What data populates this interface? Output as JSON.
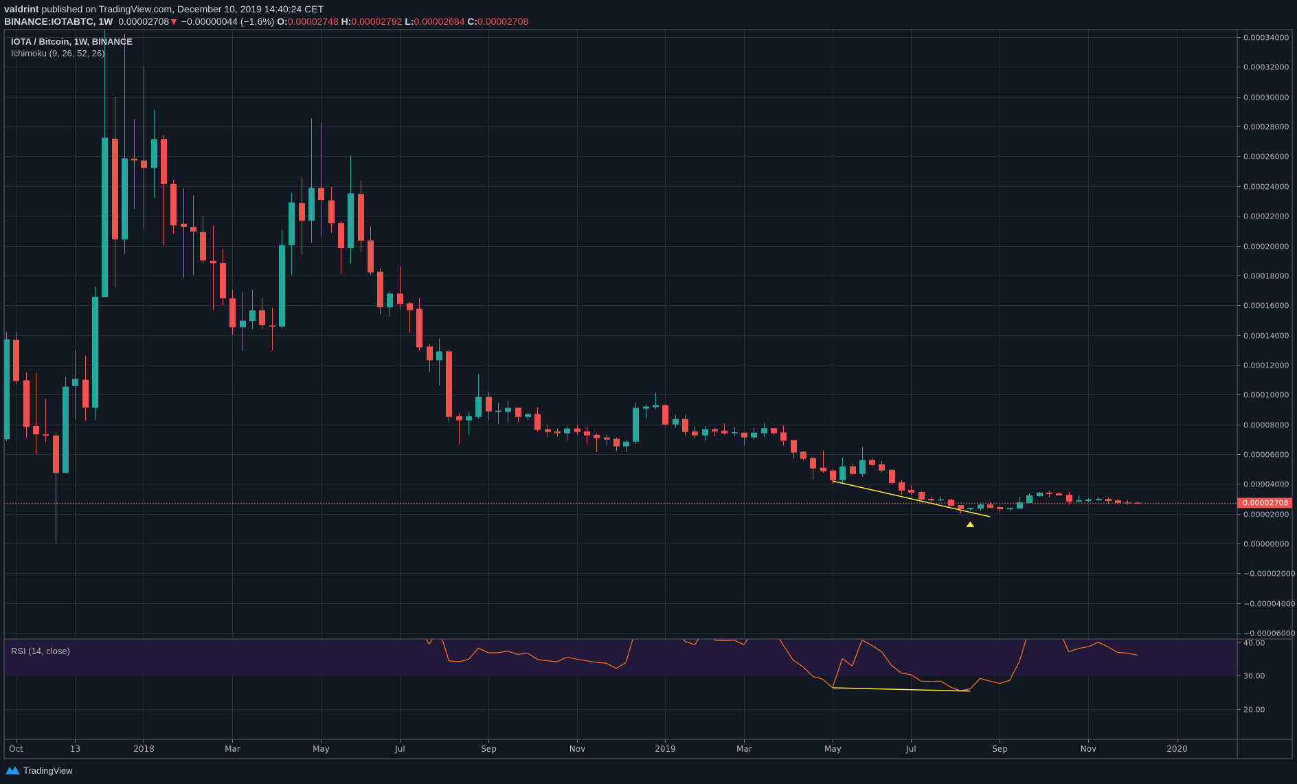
{
  "header": {
    "author": "valdrint",
    "published_text": "published on TradingView.com, December 10, 2019 14:40:24 CET",
    "symbol": "BINANCE:IOTABTC, 1W",
    "last": "0.00002708",
    "change_icon": "triangle-down-icon",
    "change": "−0.00000044 (−1.6%)",
    "o_label": "O:",
    "o": "0.00002748",
    "h_label": "H:",
    "h": "0.00002792",
    "l_label": "L:",
    "l": "0.00002684",
    "c_label": "C:",
    "c": "0.00002708"
  },
  "legend": {
    "title": "IOTA / Bitcoin, 1W, BINANCE",
    "ichimoku": "Ichimoku (9, 26, 52, 26)",
    "rsi": "RSI (14, close)"
  },
  "colors": {
    "background": "#131722",
    "grid": "#2a2e39",
    "up": "#26a69a",
    "down": "#ef5350",
    "rsi_line": "#f0701a",
    "rsi_band": "#21183a",
    "divergence": "#ffeb3b",
    "last_price": "#ef5350"
  },
  "footer": {
    "logo_icon": "tradingview-logo-icon",
    "brand": "TradingView"
  },
  "chart_data": [
    {
      "type": "candlestick",
      "title": "IOTA / Bitcoin, 1W, BINANCE",
      "ylim": [
        -6e-05,
        0.000345
      ],
      "grid": true,
      "last_price": "0.00002708",
      "y_ticks": [
        "0.00034000",
        "0.00032000",
        "0.00030000",
        "0.00028000",
        "0.00026000",
        "0.00024000",
        "0.00022000",
        "0.00020000",
        "0.00018000",
        "0.00016000",
        "0.00014000",
        "0.00012000",
        "0.00010000",
        "0.00008000",
        "0.00006000",
        "0.00004000",
        "0.00002000",
        "0.00000000",
        "−0.00002000",
        "−0.00004000",
        "−0.00006000"
      ],
      "x_ticks": [
        {
          "label": "Oct",
          "date": "2017-10-02"
        },
        {
          "label": "13",
          "date": "2017-11-13"
        },
        {
          "label": "2018",
          "date": "2018-01-01"
        },
        {
          "label": "Mar",
          "date": "2018-03-05"
        },
        {
          "label": "May",
          "date": "2018-05-07"
        },
        {
          "label": "Jul",
          "date": "2018-07-02"
        },
        {
          "label": "Sep",
          "date": "2018-09-03"
        },
        {
          "label": "Nov",
          "date": "2018-11-05"
        },
        {
          "label": "2019",
          "date": "2019-01-07"
        },
        {
          "label": "Mar",
          "date": "2019-03-04"
        },
        {
          "label": "May",
          "date": "2019-05-06"
        },
        {
          "label": "Jul",
          "date": "2019-07-01"
        },
        {
          "label": "Sep",
          "date": "2019-09-02"
        },
        {
          "label": "Nov",
          "date": "2019-11-04"
        },
        {
          "label": "2020",
          "date": "2020-01-06"
        }
      ],
      "columns": [
        "date",
        "open",
        "high",
        "low",
        "close"
      ],
      "candles": [
        [
          "2017-09-25",
          7e-05,
          0.000142,
          6.9e-05,
          0.0001371
        ],
        [
          "2017-10-02",
          0.0001367,
          0.0001422,
          0.0001069,
          0.0001091
        ],
        [
          "2017-10-09",
          0.0001096,
          0.000115,
          7.09e-05,
          7.83e-05
        ],
        [
          "2017-10-16",
          7.89e-05,
          0.000115,
          6e-05,
          7.33e-05
        ],
        [
          "2017-10-23",
          7.33e-05,
          9.71e-05,
          6.82e-05,
          7.25e-05
        ],
        [
          "2017-10-30",
          7.25e-05,
          7.47e-05,
          2e-07,
          4.74e-05
        ],
        [
          "2017-11-06",
          4.74e-05,
          0.0001118,
          4.74e-05,
          0.0001053
        ],
        [
          "2017-11-13",
          0.0001058,
          0.0001297,
          8.32e-05,
          0.0001105
        ],
        [
          "2017-11-20",
          0.00011,
          0.0001261,
          8.27e-05,
          9.12e-05
        ],
        [
          "2017-11-27",
          9.12e-05,
          0.0001722,
          8.27e-05,
          0.0001657
        ],
        [
          "2017-12-04",
          0.0001655,
          0.000345,
          0.0001655,
          0.0002724
        ],
        [
          "2017-12-11",
          0.0002718,
          0.0002999,
          0.000172,
          0.0002042
        ],
        [
          "2017-12-18",
          0.0002042,
          0.000342,
          0.0001946,
          0.0002586
        ],
        [
          "2017-12-25",
          0.0002584,
          0.000285,
          0.0002248,
          0.0002572
        ],
        [
          "2018-01-01",
          0.0002572,
          0.0003203,
          0.0002114,
          0.0002521
        ],
        [
          "2018-01-08",
          0.0002521,
          0.0002912,
          0.000232,
          0.0002716
        ],
        [
          "2018-01-15",
          0.0002716,
          0.0002742,
          0.0002002,
          0.0002414
        ],
        [
          "2018-01-22",
          0.0002414,
          0.000244,
          0.000208,
          0.0002136
        ],
        [
          "2018-01-29",
          0.0002147,
          0.0002382,
          0.0001785,
          0.0002127
        ],
        [
          "2018-02-05",
          0.0002125,
          0.0002337,
          0.0001803,
          0.0002094
        ],
        [
          "2018-02-12",
          0.0002091,
          0.0002201,
          0.0001881,
          0.0001901
        ],
        [
          "2018-02-19",
          0.0001897,
          0.0002134,
          0.0001568,
          0.0001881
        ],
        [
          "2018-02-26",
          0.0001883,
          0.0001977,
          0.0001599,
          0.0001646
        ],
        [
          "2018-03-05",
          0.0001646,
          0.00017,
          0.0001402,
          0.0001452
        ],
        [
          "2018-03-12",
          0.0001452,
          0.0001687,
          0.0001295,
          0.0001496
        ],
        [
          "2018-03-19",
          0.0001494,
          0.0001704,
          0.0001438,
          0.0001566
        ],
        [
          "2018-03-26",
          0.0001566,
          0.0001648,
          0.000144,
          0.0001467
        ],
        [
          "2018-04-02",
          0.0001465,
          0.0001584,
          0.0001299,
          0.0001456
        ],
        [
          "2018-04-09",
          0.0001456,
          0.0002105,
          0.0001443,
          0.0002004
        ],
        [
          "2018-04-16",
          0.0002004,
          0.0002355,
          0.0001803,
          0.000229
        ],
        [
          "2018-04-23",
          0.0002286,
          0.0002456,
          0.0001937,
          0.0002167
        ],
        [
          "2018-04-30",
          0.0002167,
          0.0002854,
          0.000202,
          0.0002387
        ],
        [
          "2018-05-07",
          0.0002387,
          0.0002825,
          0.0002062,
          0.0002306
        ],
        [
          "2018-05-14",
          0.0002304,
          0.0002396,
          0.0002087,
          0.000215
        ],
        [
          "2018-05-21",
          0.0002152,
          0.0002165,
          0.0001812,
          0.0001984
        ],
        [
          "2018-05-28",
          0.0001984,
          0.0002604,
          0.0001881,
          0.0002351
        ],
        [
          "2018-06-04",
          0.0002347,
          0.0002438,
          0.0001962,
          0.0002033
        ],
        [
          "2018-06-11",
          0.0002035,
          0.0002129,
          0.0001803,
          0.000182
        ],
        [
          "2018-06-18",
          0.0001825,
          0.0001852,
          0.0001537,
          0.0001586
        ],
        [
          "2018-06-25",
          0.0001586,
          0.0001692,
          0.0001525,
          0.0001678
        ],
        [
          "2018-07-02",
          0.0001678,
          0.0001863,
          0.0001576,
          0.0001609
        ],
        [
          "2018-07-09",
          0.0001613,
          0.0001622,
          0.0001414,
          0.0001567
        ],
        [
          "2018-07-16",
          0.0001576,
          0.0001646,
          0.0001294,
          0.0001317
        ],
        [
          "2018-07-23",
          0.0001322,
          0.000134,
          0.0001151,
          0.000123
        ],
        [
          "2018-07-30",
          0.000123,
          0.0001376,
          0.0001063,
          0.000129
        ],
        [
          "2018-08-06",
          0.000129,
          0.0001303,
          8.18e-05,
          8.5e-05
        ],
        [
          "2018-08-13",
          8.55e-05,
          8.74e-05,
          6.7e-05,
          8.27e-05
        ],
        [
          "2018-08-20",
          8.27e-05,
          8.83e-05,
          7.3e-05,
          8.55e-05
        ],
        [
          "2018-08-27",
          8.5e-05,
          0.0001137,
          8.37e-05,
          9.84e-05
        ],
        [
          "2018-09-03",
          9.84e-05,
          0.0001017,
          8.27e-05,
          8.87e-05
        ],
        [
          "2018-09-10",
          8.83e-05,
          9.43e-05,
          8.04e-05,
          8.92e-05
        ],
        [
          "2018-09-17",
          8.83e-05,
          9.57e-05,
          8.09e-05,
          9.11e-05
        ],
        [
          "2018-09-24",
          9.11e-05,
          9.15e-05,
          8.13e-05,
          8.5e-05
        ],
        [
          "2018-10-01",
          8.5e-05,
          8.78e-05,
          8.27e-05,
          8.69e-05
        ],
        [
          "2018-10-08",
          8.69e-05,
          9.15e-05,
          7.53e-05,
          7.63e-05
        ],
        [
          "2018-10-15",
          7.67e-05,
          7.95e-05,
          7.12e-05,
          7.49e-05
        ],
        [
          "2018-10-22",
          7.53e-05,
          7.72e-05,
          7.17e-05,
          7.4e-05
        ],
        [
          "2018-10-29",
          7.4e-05,
          7.86e-05,
          6.93e-05,
          7.72e-05
        ],
        [
          "2018-11-05",
          7.72e-05,
          7.95e-05,
          7.3e-05,
          7.49e-05
        ],
        [
          "2018-11-12",
          7.53e-05,
          7.86e-05,
          6.7e-05,
          7.26e-05
        ],
        [
          "2018-11-19",
          7.3e-05,
          7.39e-05,
          6.14e-05,
          7.07e-05
        ],
        [
          "2018-11-26",
          7.12e-05,
          7.35e-05,
          6.61e-05,
          6.98e-05
        ],
        [
          "2018-12-03",
          7.03e-05,
          7.12e-05,
          6.19e-05,
          6.52e-05
        ],
        [
          "2018-12-10",
          6.52e-05,
          6.98e-05,
          6.14e-05,
          6.84e-05
        ],
        [
          "2018-12-17",
          6.84e-05,
          9.48e-05,
          6.69e-05,
          9.11e-05
        ],
        [
          "2018-12-24",
          9.06e-05,
          9.34e-05,
          8.37e-05,
          9.2e-05
        ],
        [
          "2018-12-31",
          9.15e-05,
          0.0001012,
          9.06e-05,
          9.29e-05
        ],
        [
          "2019-01-07",
          9.29e-05,
          9.34e-05,
          7.95e-05,
          7.99e-05
        ],
        [
          "2019-01-14",
          7.99e-05,
          8.64e-05,
          7.76e-05,
          8.36e-05
        ],
        [
          "2019-01-21",
          8.36e-05,
          8.64e-05,
          7.21e-05,
          7.49e-05
        ],
        [
          "2019-01-28",
          7.53e-05,
          7.86e-05,
          7.07e-05,
          7.26e-05
        ],
        [
          "2019-02-04",
          7.26e-05,
          7.9e-05,
          6.93e-05,
          7.67e-05
        ],
        [
          "2019-02-11",
          7.67e-05,
          7.76e-05,
          7.21e-05,
          7.53e-05
        ],
        [
          "2019-02-18",
          7.58e-05,
          8.04e-05,
          7.3e-05,
          7.4e-05
        ],
        [
          "2019-02-25",
          7.44e-05,
          7.81e-05,
          7.21e-05,
          7.47e-05
        ],
        [
          "2019-03-04",
          7.44e-05,
          7.44e-05,
          6.61e-05,
          7.12e-05
        ],
        [
          "2019-03-11",
          7.12e-05,
          7.76e-05,
          6.98e-05,
          7.44e-05
        ],
        [
          "2019-03-18",
          7.41e-05,
          8.11e-05,
          7.15e-05,
          7.74e-05
        ],
        [
          "2019-03-25",
          7.74e-05,
          7.74e-05,
          7.29e-05,
          7.41e-05
        ],
        [
          "2019-04-01",
          7.46e-05,
          7.92e-05,
          6.57e-05,
          6.9e-05
        ],
        [
          "2019-04-08",
          6.95e-05,
          6.95e-05,
          5.69e-05,
          6.11e-05
        ],
        [
          "2019-04-15",
          6.16e-05,
          6.2e-05,
          5.6e-05,
          5.69e-05
        ],
        [
          "2019-04-22",
          5.74e-05,
          5.83e-05,
          4.34e-05,
          5.04e-05
        ],
        [
          "2019-04-29",
          5.09e-05,
          6.25e-05,
          4.76e-05,
          4.85e-05
        ],
        [
          "2019-05-06",
          4.9e-05,
          4.99e-05,
          3.97e-05,
          4.25e-05
        ],
        [
          "2019-05-13",
          4.25e-05,
          5.78e-05,
          4.02e-05,
          5.18e-05
        ],
        [
          "2019-05-20",
          5.18e-05,
          5.37e-05,
          4.57e-05,
          4.67e-05
        ],
        [
          "2019-05-27",
          4.67e-05,
          6.48e-05,
          4.48e-05,
          5.6e-05
        ],
        [
          "2019-06-03",
          5.6e-05,
          5.74e-05,
          5.18e-05,
          5.27e-05
        ],
        [
          "2019-06-10",
          5.32e-05,
          5.55e-05,
          4.76e-05,
          4.9e-05
        ],
        [
          "2019-06-17",
          4.95e-05,
          4.99e-05,
          3.92e-05,
          4.06e-05
        ],
        [
          "2019-06-24",
          4.11e-05,
          4.25e-05,
          3.27e-05,
          3.55e-05
        ],
        [
          "2019-07-01",
          3.6e-05,
          3.92e-05,
          3.27e-05,
          3.41e-05
        ],
        [
          "2019-07-08",
          3.46e-05,
          3.51e-05,
          2.81e-05,
          2.95e-05
        ],
        [
          "2019-07-15",
          3e-05,
          3.13e-05,
          2.67e-05,
          2.9e-05
        ],
        [
          "2019-07-22",
          2.92e-05,
          3.18e-05,
          2.81e-05,
          2.96e-05
        ],
        [
          "2019-07-29",
          2.95e-05,
          3e-05,
          2.53e-05,
          2.53e-05
        ],
        [
          "2019-08-05",
          2.58e-05,
          2.58e-05,
          2.02e-05,
          2.3e-05
        ],
        [
          "2019-08-12",
          2.3e-05,
          2.39e-05,
          2.2e-05,
          2.39e-05
        ],
        [
          "2019-08-19",
          2.34e-05,
          2.71e-05,
          2.2e-05,
          2.62e-05
        ],
        [
          "2019-08-26",
          2.62e-05,
          2.76e-05,
          2.39e-05,
          2.39e-05
        ],
        [
          "2019-09-02",
          2.44e-05,
          2.53e-05,
          2.11e-05,
          2.3e-05
        ],
        [
          "2019-09-09",
          2.3e-05,
          2.39e-05,
          2.16e-05,
          2.39e-05
        ],
        [
          "2019-09-16",
          2.34e-05,
          3.13e-05,
          2.34e-05,
          2.76e-05
        ],
        [
          "2019-09-23",
          2.71e-05,
          3.36e-05,
          2.71e-05,
          3.23e-05
        ],
        [
          "2019-09-30",
          3.18e-05,
          3.46e-05,
          3.13e-05,
          3.41e-05
        ],
        [
          "2019-10-07",
          3.41e-05,
          3.55e-05,
          3.09e-05,
          3.32e-05
        ],
        [
          "2019-10-14",
          3.36e-05,
          3.46e-05,
          3.23e-05,
          3.23e-05
        ],
        [
          "2019-10-21",
          3.27e-05,
          3.46e-05,
          2.62e-05,
          2.81e-05
        ],
        [
          "2019-10-28",
          2.81e-05,
          3.18e-05,
          2.76e-05,
          2.9e-05
        ],
        [
          "2019-11-04",
          2.85e-05,
          3.04e-05,
          2.76e-05,
          2.95e-05
        ],
        [
          "2019-11-11",
          2.9e-05,
          3.13e-05,
          2.85e-05,
          3e-05
        ],
        [
          "2019-11-18",
          3e-05,
          3.09e-05,
          2.67e-05,
          2.85e-05
        ],
        [
          "2019-11-25",
          2.9e-05,
          3e-05,
          2.67e-05,
          2.72e-05
        ],
        [
          "2019-12-02",
          2.76e-05,
          2.9e-05,
          2.62e-05,
          2.71e-05
        ],
        [
          "2019-12-09",
          2.748e-05,
          2.792e-05,
          2.684e-05,
          2.708e-05
        ]
      ],
      "divergence_line": [
        [
          "2019-05-06",
          4.2e-05
        ],
        [
          "2019-08-26",
          1.8e-05
        ]
      ],
      "arrow_up_marker": [
        "2019-08-12",
        1.3e-05
      ]
    },
    {
      "type": "line",
      "title": "RSI (14, close)",
      "y_ticks": [
        "40.00",
        "30.00",
        "20.00"
      ],
      "band_lower": 30,
      "values": [
        null,
        null,
        null,
        null,
        null,
        null,
        null,
        null,
        null,
        null,
        null,
        null,
        null,
        null,
        null,
        null,
        null,
        null,
        null,
        null,
        null,
        null,
        null,
        null,
        null,
        null,
        null,
        null,
        null,
        null,
        null,
        null,
        null,
        null,
        null,
        null,
        null,
        null,
        null,
        null,
        null,
        null,
        null,
        39.4,
        null,
        34.4,
        34.1,
        34.8,
        38.2,
        36.8,
        36.8,
        37.3,
        36.3,
        36.7,
        34.8,
        34.4,
        34.1,
        35.5,
        34.9,
        34.4,
        33.9,
        33.7,
        32.1,
        33.9,
        null,
        null,
        null,
        null,
        null,
        40.2,
        39.2,
        null,
        40.6,
        40.4,
        40.6,
        39.2,
        null,
        null,
        null,
        39.0,
        34.6,
        32.6,
        29.7,
        28.9,
        26.3,
        35.1,
        32.8,
        40.6,
        39.0,
        37.1,
        33.0,
        30.7,
        30.2,
        28.3,
        28.2,
        28.3,
        26.5,
        25.4,
        26.0,
        29.1,
        28.3,
        27.6,
        28.5,
        34.2,
        null,
        null,
        null,
        null,
        37.1,
        38.1,
        38.6,
        40.0,
        38.6,
        36.9,
        36.7,
        36.1
      ],
      "divergence_line": [
        [
          "2019-05-06",
          26.3
        ],
        [
          "2019-08-12",
          25.3
        ]
      ]
    }
  ]
}
